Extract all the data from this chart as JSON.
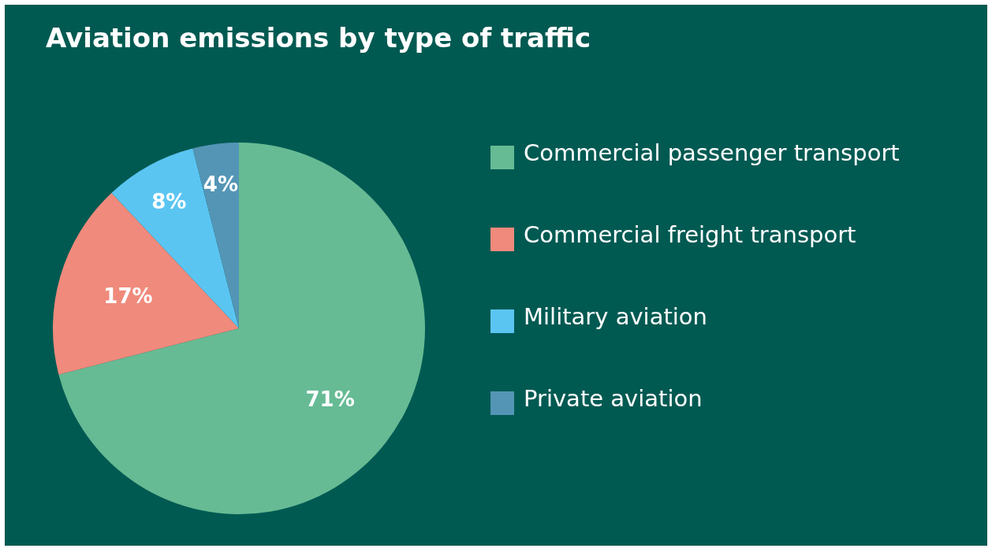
{
  "chart_data": {
    "type": "pie",
    "title": "Aviation emissions by type of traffic",
    "categories": [
      "Commercial passenger transport",
      "Commercial freight transport",
      "Military aviation",
      "Private aviation"
    ],
    "values": [
      71,
      17,
      8,
      4
    ],
    "colors": [
      "#66bb94",
      "#f08a7c",
      "#5bc5f2",
      "#5495b5"
    ],
    "value_labels": [
      "71%",
      "17%",
      "8%",
      "4%"
    ],
    "legend": "right"
  }
}
